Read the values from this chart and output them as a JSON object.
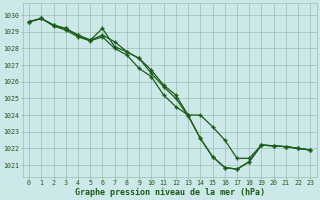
{
  "background_color": "#cde8e8",
  "grid_color": "#9bbfb0",
  "line_color": "#1a5c1a",
  "marker_color": "#1a5c1a",
  "xlabel": "Graphe pression niveau de la mer (hPa)",
  "xlabel_color": "#1a5c1a",
  "ymin": 1020.3,
  "ymax": 1030.7,
  "xmin": -0.5,
  "xmax": 23.5,
  "x_ticks": [
    0,
    1,
    2,
    3,
    4,
    5,
    6,
    7,
    8,
    9,
    10,
    11,
    12,
    13,
    14,
    15,
    16,
    17,
    18,
    19,
    20,
    21,
    22,
    23
  ],
  "y_ticks": [
    1021,
    1022,
    1023,
    1024,
    1025,
    1026,
    1027,
    1028,
    1029,
    1030
  ],
  "s1": [
    1029.6,
    1029.8,
    1029.4,
    1029.2,
    1028.8,
    1028.5,
    1029.2,
    1028.1,
    1027.8,
    1027.4,
    1026.7,
    1025.8,
    1025.2,
    1024.0,
    1022.6,
    1021.5,
    1020.85,
    1020.75,
    1021.2,
    1022.2,
    1022.15,
    1022.1,
    1022.0,
    1021.9
  ],
  "s2": [
    1029.6,
    1029.8,
    1029.4,
    1029.2,
    1028.8,
    1028.5,
    1028.8,
    1028.4,
    1027.8,
    1027.4,
    1026.5,
    1025.7,
    1025.0,
    1023.95,
    1022.6,
    1021.5,
    1020.85,
    1020.75,
    1021.2,
    1022.2,
    1022.15,
    1022.1,
    1022.0,
    1021.9
  ],
  "s3": [
    1029.6,
    1029.8,
    1029.35,
    1029.1,
    1028.7,
    1028.45,
    1028.7,
    1028.0,
    1027.6,
    1026.8,
    1026.3,
    1025.2,
    1024.5,
    1024.0,
    1024.0,
    1023.3,
    1022.5,
    1021.4,
    1021.4,
    1022.2,
    1022.15,
    1022.1,
    1022.0,
    1021.9
  ]
}
